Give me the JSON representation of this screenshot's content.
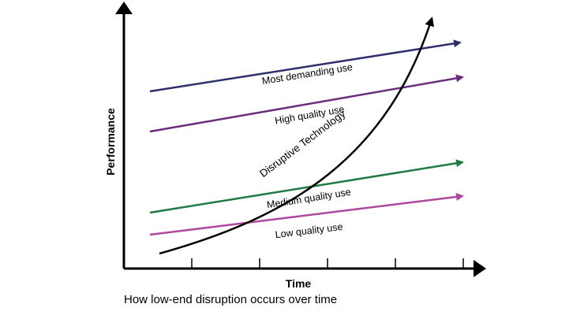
{
  "axes": {
    "y_title": "Performance",
    "x_title": "Time",
    "tick_count": 5
  },
  "caption": "How low-end disruption occurs over time",
  "lines": [
    {
      "label": "Most demanding use",
      "color": "#2e2e6e"
    },
    {
      "label": "High quality use",
      "color": "#6b2e7e"
    },
    {
      "label": "Medium quality use",
      "color": "#1f7a45"
    },
    {
      "label": "Low quality use",
      "color": "#b0479d"
    }
  ],
  "curve": {
    "label": "Disruptive Technology",
    "color": "#000000"
  }
}
